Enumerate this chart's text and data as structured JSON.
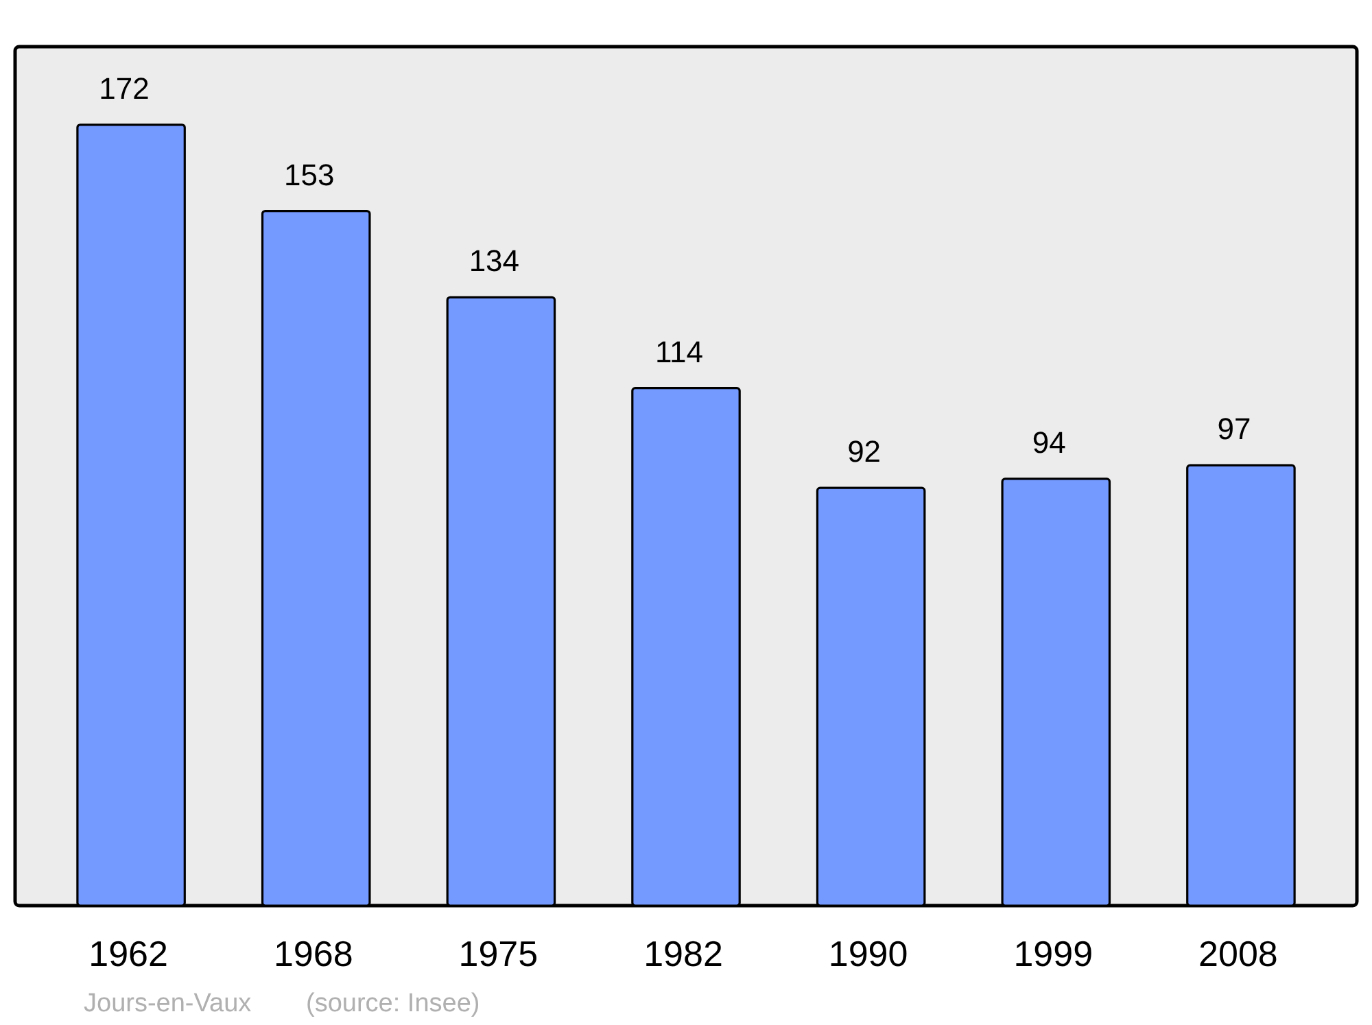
{
  "chart_data": {
    "type": "bar",
    "categories": [
      "1962",
      "1968",
      "1975",
      "1982",
      "1990",
      "1999",
      "2008"
    ],
    "values": [
      172,
      153,
      134,
      114,
      92,
      94,
      97
    ],
    "color": "#7499ff",
    "data_labels": true,
    "annotations": [
      "Jours-en-Vaux",
      "(source: Insee)"
    ]
  }
}
